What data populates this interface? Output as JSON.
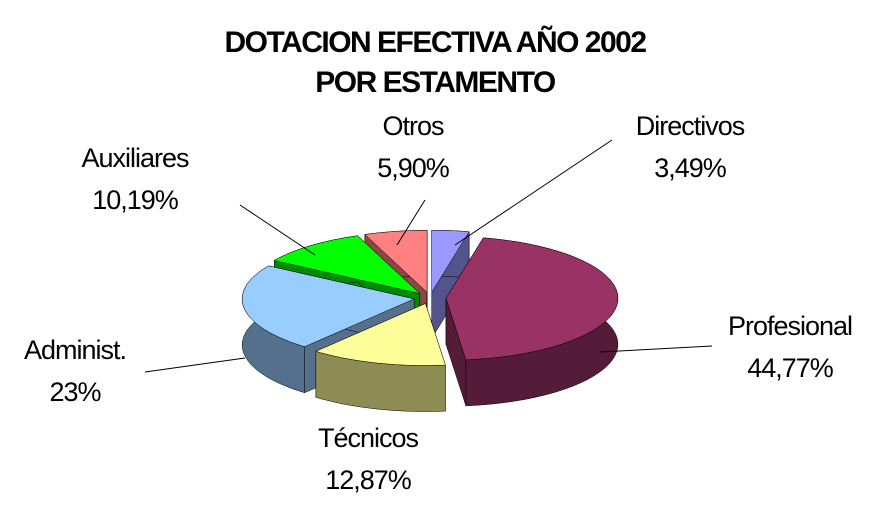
{
  "chart_data": {
    "type": "pie3d",
    "title": [
      "DOTACION EFECTIVA AÑO 2002",
      "POR ESTAMENTO"
    ],
    "categories": [
      "Directivos",
      "Profesional",
      "Técnicos",
      "Administ.",
      "Auxiliares",
      "Otros"
    ],
    "values": [
      3.49,
      44.77,
      12.87,
      23,
      10.19,
      5.9
    ],
    "value_labels": [
      "3,49%",
      "44,77%",
      "12,87%",
      "23%",
      "10,19%",
      "5,90%"
    ],
    "colors": [
      "#9999ff",
      "#993366",
      "#ffff99",
      "#99ccff",
      "#00ff00",
      "#ff8080"
    ]
  }
}
